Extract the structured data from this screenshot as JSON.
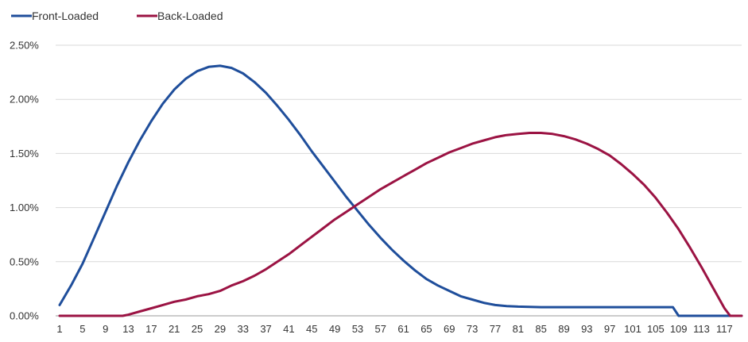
{
  "chart_data": {
    "type": "line",
    "title": "",
    "xlabel": "",
    "ylabel": "",
    "legend_position": "top-left",
    "grid": "horizontal",
    "ylim": [
      0,
      2.5
    ],
    "y_ticks": [
      {
        "value": 0,
        "label": "0.00%"
      },
      {
        "value": 0.5,
        "label": "0.50%"
      },
      {
        "value": 1.0,
        "label": "1.00%"
      },
      {
        "value": 1.5,
        "label": "1.50%"
      },
      {
        "value": 2.0,
        "label": "2.00%"
      },
      {
        "value": 2.5,
        "label": "2.50%"
      }
    ],
    "x_range": [
      1,
      120
    ],
    "x_ticks": [
      "1",
      "5",
      "9",
      "13",
      "17",
      "21",
      "25",
      "29",
      "33",
      "37",
      "41",
      "45",
      "49",
      "53",
      "57",
      "61",
      "65",
      "69",
      "73",
      "77",
      "81",
      "85",
      "89",
      "93",
      "97",
      "101",
      "105",
      "109",
      "113",
      "117"
    ],
    "series": [
      {
        "name": "Front-Loaded",
        "color": "#1f4e9b",
        "points": [
          [
            1,
            0.1
          ],
          [
            3,
            0.28
          ],
          [
            5,
            0.48
          ],
          [
            7,
            0.72
          ],
          [
            9,
            0.96
          ],
          [
            11,
            1.2
          ],
          [
            13,
            1.42
          ],
          [
            15,
            1.62
          ],
          [
            17,
            1.8
          ],
          [
            19,
            1.96
          ],
          [
            21,
            2.09
          ],
          [
            23,
            2.19
          ],
          [
            25,
            2.26
          ],
          [
            27,
            2.3
          ],
          [
            29,
            2.31
          ],
          [
            31,
            2.29
          ],
          [
            33,
            2.24
          ],
          [
            35,
            2.16
          ],
          [
            37,
            2.06
          ],
          [
            39,
            1.94
          ],
          [
            41,
            1.81
          ],
          [
            43,
            1.67
          ],
          [
            45,
            1.52
          ],
          [
            47,
            1.38
          ],
          [
            49,
            1.24
          ],
          [
            51,
            1.1
          ],
          [
            53,
            0.97
          ],
          [
            55,
            0.84
          ],
          [
            57,
            0.72
          ],
          [
            59,
            0.61
          ],
          [
            61,
            0.51
          ],
          [
            63,
            0.42
          ],
          [
            65,
            0.34
          ],
          [
            67,
            0.28
          ],
          [
            69,
            0.23
          ],
          [
            71,
            0.18
          ],
          [
            73,
            0.15
          ],
          [
            75,
            0.12
          ],
          [
            77,
            0.1
          ],
          [
            79,
            0.09
          ],
          [
            81,
            0.085
          ],
          [
            85,
            0.08
          ],
          [
            90,
            0.08
          ],
          [
            95,
            0.08
          ],
          [
            100,
            0.08
          ],
          [
            105,
            0.08
          ],
          [
            108,
            0.08
          ],
          [
            109,
            0.0
          ],
          [
            113,
            0.0
          ],
          [
            117,
            0.0
          ],
          [
            120,
            0.0
          ]
        ]
      },
      {
        "name": "Back-Loaded",
        "color": "#9b1343",
        "points": [
          [
            1,
            0.0
          ],
          [
            5,
            0.0
          ],
          [
            9,
            0.0
          ],
          [
            12,
            0.0
          ],
          [
            13,
            0.01
          ],
          [
            15,
            0.04
          ],
          [
            17,
            0.07
          ],
          [
            19,
            0.1
          ],
          [
            21,
            0.13
          ],
          [
            23,
            0.15
          ],
          [
            25,
            0.18
          ],
          [
            27,
            0.2
          ],
          [
            29,
            0.23
          ],
          [
            31,
            0.28
          ],
          [
            33,
            0.32
          ],
          [
            35,
            0.37
          ],
          [
            37,
            0.43
          ],
          [
            39,
            0.5
          ],
          [
            41,
            0.57
          ],
          [
            43,
            0.65
          ],
          [
            45,
            0.73
          ],
          [
            47,
            0.81
          ],
          [
            49,
            0.89
          ],
          [
            51,
            0.96
          ],
          [
            53,
            1.03
          ],
          [
            55,
            1.1
          ],
          [
            57,
            1.17
          ],
          [
            59,
            1.23
          ],
          [
            61,
            1.29
          ],
          [
            63,
            1.35
          ],
          [
            65,
            1.41
          ],
          [
            67,
            1.46
          ],
          [
            69,
            1.51
          ],
          [
            71,
            1.55
          ],
          [
            73,
            1.59
          ],
          [
            75,
            1.62
          ],
          [
            77,
            1.65
          ],
          [
            79,
            1.67
          ],
          [
            81,
            1.68
          ],
          [
            83,
            1.69
          ],
          [
            85,
            1.69
          ],
          [
            87,
            1.68
          ],
          [
            89,
            1.66
          ],
          [
            91,
            1.63
          ],
          [
            93,
            1.59
          ],
          [
            95,
            1.54
          ],
          [
            97,
            1.48
          ],
          [
            99,
            1.4
          ],
          [
            101,
            1.31
          ],
          [
            103,
            1.21
          ],
          [
            105,
            1.09
          ],
          [
            107,
            0.95
          ],
          [
            109,
            0.8
          ],
          [
            111,
            0.63
          ],
          [
            113,
            0.45
          ],
          [
            115,
            0.26
          ],
          [
            117,
            0.07
          ],
          [
            118,
            0.0
          ],
          [
            120,
            0.0
          ]
        ]
      }
    ]
  }
}
